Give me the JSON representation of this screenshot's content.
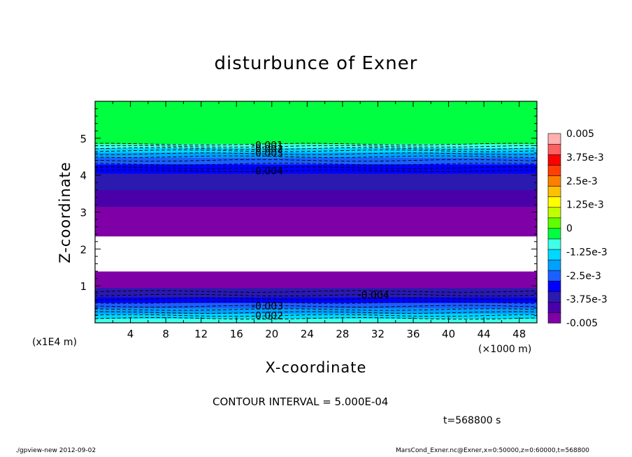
{
  "chart_data": {
    "type": "heatmap",
    "title": "disturbunce of Exner",
    "xlabel": "X-coordinate",
    "ylabel": "Z-coordinate",
    "x_scale_label": "(×1000 m)",
    "y_scale_label": "(x1E4 m)",
    "xlim": [
      0,
      50
    ],
    "ylim": [
      0,
      6
    ],
    "x_ticks": [
      "4",
      "8",
      "12",
      "16",
      "20",
      "24",
      "28",
      "32",
      "36",
      "40",
      "44",
      "48"
    ],
    "x_tick_values": [
      4,
      8,
      12,
      16,
      20,
      24,
      28,
      32,
      36,
      40,
      44,
      48
    ],
    "y_ticks": [
      "1",
      "2",
      "3",
      "4",
      "5"
    ],
    "y_tick_values": [
      1,
      2,
      3,
      4,
      5
    ],
    "colorbar": {
      "min": -0.005,
      "max": 0.005,
      "labels": [
        "0.005",
        "3.75e-3",
        "2.5e-3",
        "1.25e-3",
        "0",
        "-1.25e-3",
        "-2.5e-3",
        "-3.75e-3",
        "-0.005"
      ],
      "label_values": [
        0.005,
        0.00375,
        0.0025,
        0.00125,
        0,
        -0.00125,
        -0.0025,
        -0.00375,
        -0.005
      ],
      "colors": [
        "#7f00a7",
        "#4a00a8",
        "#2a1ab0",
        "#0000ff",
        "#1a60ff",
        "#00a0ff",
        "#00d8ff",
        "#40ffe6",
        "#00ff40",
        "#60ff00",
        "#c0ff00",
        "#ffff00",
        "#ffc000",
        "#ff8000",
        "#ff4000",
        "#ff0000",
        "#ff6060",
        "#ffb0b0"
      ]
    },
    "bands": [
      {
        "z0": 0.0,
        "z1": 0.12,
        "value": -0.0015,
        "color": "#40ffe6"
      },
      {
        "z0": 0.12,
        "z1": 0.25,
        "value": -0.002,
        "color": "#00d8ff"
      },
      {
        "z0": 0.25,
        "z1": 0.4,
        "value": -0.0025,
        "color": "#00a0ff"
      },
      {
        "z0": 0.4,
        "z1": 0.55,
        "value": -0.003,
        "color": "#1a60ff"
      },
      {
        "z0": 0.55,
        "z1": 0.7,
        "value": -0.0035,
        "color": "#0000ff"
      },
      {
        "z0": 0.7,
        "z1": 0.95,
        "value": -0.004,
        "color": "#2a1ab0"
      },
      {
        "z0": 0.95,
        "z1": 1.4,
        "value": -0.0048,
        "color": "#7f00a7"
      },
      {
        "z0": 1.4,
        "z1": 2.35,
        "value": -0.0052,
        "color": "#ffffff"
      },
      {
        "z0": 2.35,
        "z1": 3.15,
        "value": -0.0048,
        "color": "#7f00a7"
      },
      {
        "z0": 3.15,
        "z1": 3.6,
        "value": -0.0044,
        "color": "#4a00a8"
      },
      {
        "z0": 3.6,
        "z1": 4.05,
        "value": -0.0042,
        "color": "#2a1ab0"
      },
      {
        "z0": 4.05,
        "z1": 4.3,
        "value": -0.004,
        "color": "#0000ff"
      },
      {
        "z0": 4.3,
        "z1": 4.48,
        "value": -0.003,
        "color": "#1a60ff"
      },
      {
        "z0": 4.48,
        "z1": 4.62,
        "value": -0.0025,
        "color": "#00a0ff"
      },
      {
        "z0": 4.62,
        "z1": 4.74,
        "value": -0.0015,
        "color": "#00d8ff"
      },
      {
        "z0": 4.74,
        "z1": 4.85,
        "value": -0.0005,
        "color": "#40ffe6"
      },
      {
        "z0": 4.85,
        "z1": 6.0,
        "value": 0.0002,
        "color": "#00ff40"
      }
    ],
    "contour_levels_z": [
      0.12,
      0.2,
      0.28,
      0.36,
      0.45,
      0.55,
      0.65,
      0.75,
      0.85,
      4.12,
      4.2,
      4.3,
      4.4,
      4.5,
      4.58,
      4.66,
      4.72,
      4.78,
      4.84
    ],
    "contour_labels": [
      {
        "text": "-0.001",
        "x": 19.5,
        "z": 4.82
      },
      {
        "text": "-0.002",
        "x": 19.5,
        "z": 4.71
      },
      {
        "text": "-0.003",
        "x": 19.5,
        "z": 4.6
      },
      {
        "text": "-0.004",
        "x": 19.5,
        "z": 4.12
      },
      {
        "text": "-0.004",
        "x": 31.5,
        "z": 0.76
      },
      {
        "text": "-0.003",
        "x": 19.5,
        "z": 0.45
      },
      {
        "text": "-0.002",
        "x": 19.5,
        "z": 0.2
      }
    ]
  },
  "annotations": {
    "contour_interval": "CONTOUR INTERVAL = 5.000E-04",
    "time": "t=568800 s",
    "footer_left": "./gpview-new   2012-09-02",
    "footer_right": "MarsCond_Exner.nc@Exner,x=0:50000,z=0:60000,t=568800"
  }
}
